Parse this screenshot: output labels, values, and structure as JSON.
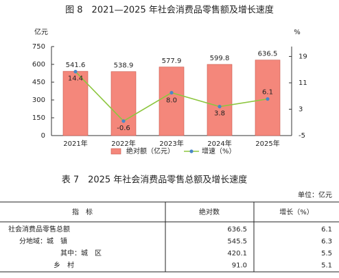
{
  "chart_data": {
    "type": "bar",
    "title": "图 8　2021—2025 年社会消费品零售额及增长速度",
    "ylabel": "亿元",
    "y2label": "%",
    "categories": [
      "2021年",
      "2022年",
      "2023年",
      "2024年",
      "2025年"
    ],
    "series": [
      {
        "name": "绝对额（亿元）",
        "type": "bar",
        "color": "#f4877b",
        "values": [
          541.6,
          538.9,
          577.9,
          599.8,
          636.5
        ],
        "value_labels": [
          "541.6",
          "538.9",
          "577.9",
          "599.8",
          "636.5"
        ]
      },
      {
        "name": "增速（%）",
        "type": "line",
        "axis": "y2",
        "color": "#8dc63f",
        "marker_color": "#4a86c8",
        "values": [
          14.4,
          -0.6,
          8.0,
          3.8,
          6.1
        ],
        "value_labels": [
          "14.4",
          "-0.6",
          "8.0",
          "3.8",
          "6.1"
        ]
      }
    ],
    "ylim": [
      0,
      750
    ],
    "yticks": [
      0,
      150,
      300,
      450,
      600,
      750
    ],
    "y2lim": [
      -5,
      22
    ],
    "y2ticks": [
      -5,
      3,
      11,
      19
    ]
  },
  "table": {
    "title": "表 7　2025 年社会消费品零售总额及增长速度",
    "unit": "单位：亿元",
    "header": [
      "指　标",
      "绝对数",
      "增长（%）"
    ],
    "rows": [
      [
        "社会消费品零售总额",
        "636.5",
        "6.1"
      ],
      [
        "分地域：城　镇",
        "545.5",
        "6.3"
      ],
      [
        "其中：城　区",
        "420.1",
        "5.5"
      ],
      [
        "乡　村",
        "91.0",
        "5.1"
      ]
    ]
  }
}
